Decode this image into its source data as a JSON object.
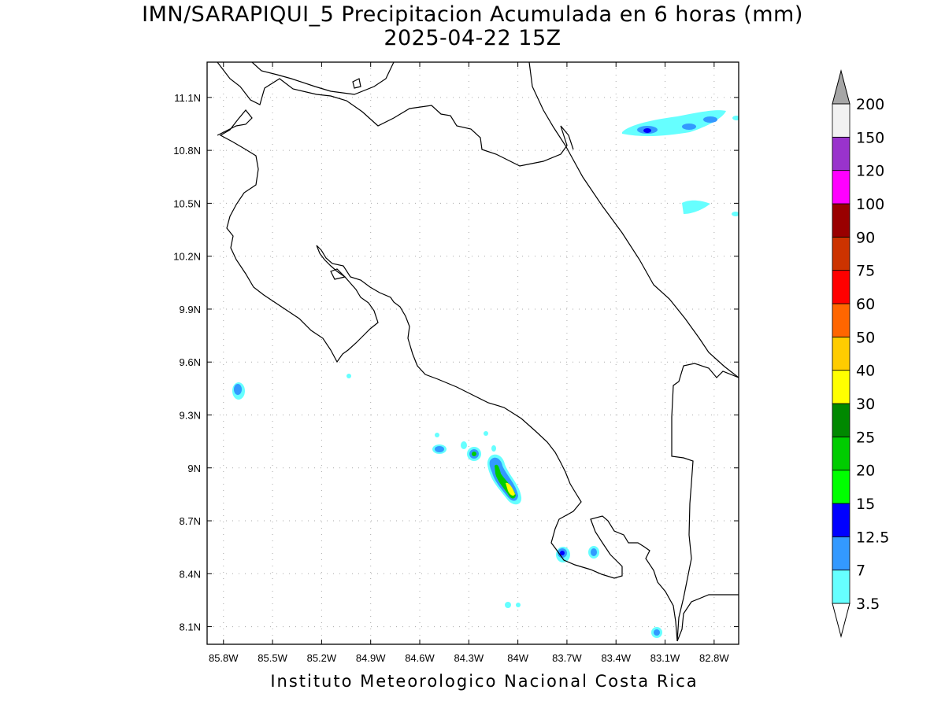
{
  "title": {
    "line1": "IMN/SARAPIQUI_5 Precipitacion Acumulada en 6 horas (mm)",
    "line2": "2025-04-22 15Z"
  },
  "credit": "Instituto Meteorologico Nacional Costa Rica",
  "map": {
    "region": "Costa Rica",
    "lon_range": [
      -85.9,
      -82.65
    ],
    "lat_range": [
      8.0,
      11.3
    ],
    "lat_ticks": [
      "11.1N",
      "10.8N",
      "10.5N",
      "10.2N",
      "9.9N",
      "9.6N",
      "9.3N",
      "9N",
      "8.7N",
      "8.4N",
      "8.1N"
    ],
    "lon_ticks": [
      "85.8W",
      "85.5W",
      "85.2W",
      "84.9W",
      "84.6W",
      "84.3W",
      "84W",
      "83.7W",
      "83.4W",
      "83.1W",
      "82.8W"
    ],
    "grid": true
  },
  "colorbar": {
    "levels": [
      "3.5",
      "7",
      "12.5",
      "15",
      "20",
      "25",
      "30",
      "40",
      "50",
      "60",
      "75",
      "90",
      "100",
      "120",
      "150",
      "200"
    ],
    "colors": [
      "#ffffff",
      "#66ffff",
      "#3399ff",
      "#0000ff",
      "#00ff00",
      "#00cc00",
      "#008800",
      "#ffff00",
      "#ffcc00",
      "#ff6600",
      "#ff0000",
      "#cc3300",
      "#990000",
      "#ff00ff",
      "#9933cc",
      "#f2f2f2",
      "#a6a6a6"
    ]
  }
}
